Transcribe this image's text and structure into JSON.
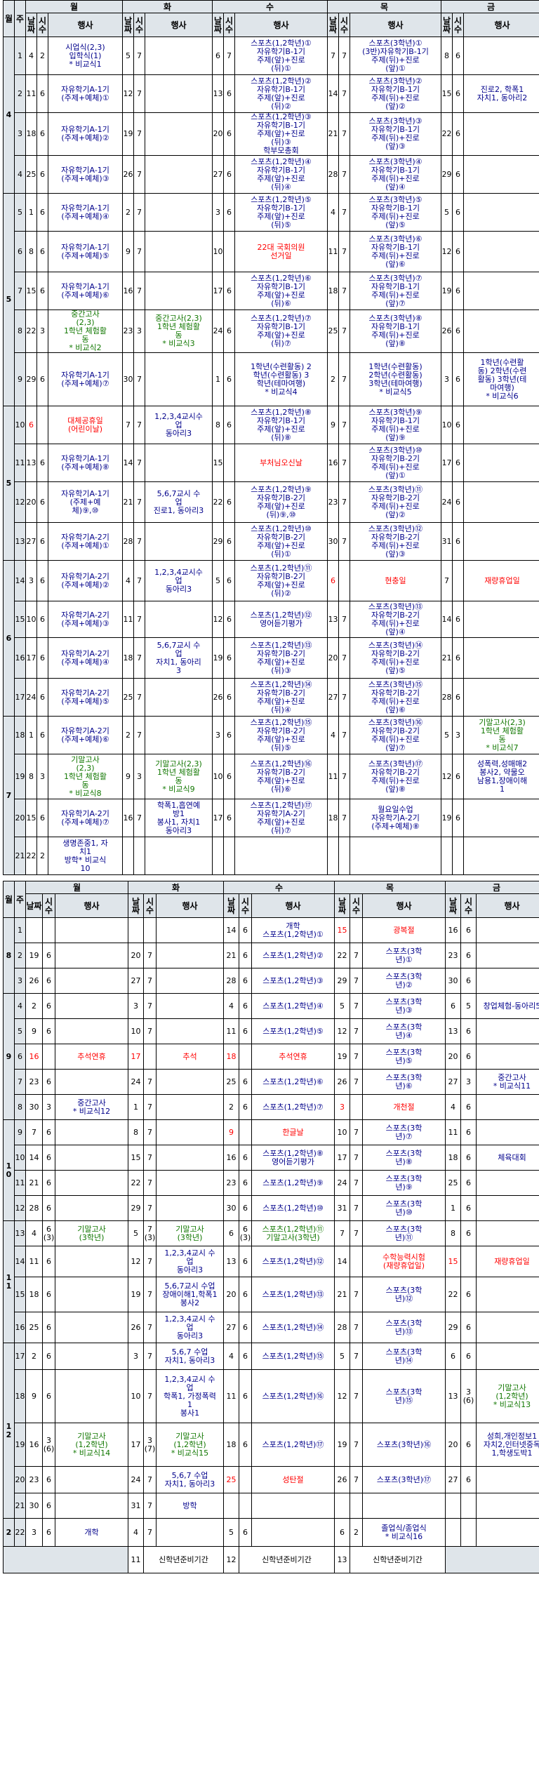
{
  "headers": {
    "month": "월",
    "week": "주",
    "mon": "월",
    "tue": "화",
    "wed": "수",
    "thu": "목",
    "fri": "금",
    "date": "날짜",
    "period": "시수",
    "event": "행사"
  },
  "s1": [
    [
      "4",
      "1",
      "4",
      "2",
      "시업식(2,3)\n입학식(1)\n* 비교식1",
      "5",
      "7",
      "",
      "6",
      "7",
      "스포츠(1,2학년)①\n자유학기B-1기\n주제(앞)+진로\n(뒤)①",
      "7",
      "7",
      "스포츠(3학년)①\n(3반)자유학기B-1기\n주제(뒤)+진로\n(앞)①",
      "8",
      "6",
      ""
    ],
    [
      "",
      "2",
      "11",
      "6",
      "자유학기A-1기\n(주제+예체)①",
      "12",
      "7",
      "",
      "13",
      "6",
      "스포츠(1,2학년)②\n자유학기B-1기\n주제(앞)+진로\n(뒤)②",
      "14",
      "7",
      "스포츠(3학년)②\n자유학기B-1기\n주제(뒤)+진로\n(앞)②",
      "15",
      "6",
      "진로2, 학폭1\n자치1, 동아리2"
    ],
    [
      "",
      "3",
      "18",
      "6",
      "자유학기A-1기\n(주제+예체)②",
      "19",
      "7",
      "",
      "20",
      "6",
      "스포츠(1,2학년)③\n자유학기B-1기\n주제(앞)+진로\n(뒤)③\n학부모총회",
      "21",
      "7",
      "스포츠(3학년)③\n자유학기B-1기\n주제(뒤)+진로\n(앞)③",
      "22",
      "6",
      ""
    ],
    [
      "",
      "4",
      "25",
      "6",
      "자유학기A-1기\n(주제+예체)③",
      "26",
      "7",
      "",
      "27",
      "6",
      "스포츠(1,2학년)④\n자유학기B-1기\n주제(앞)+진로\n(뒤)④",
      "28",
      "7",
      "스포츠(3학년)④\n자유학기B-1기\n주제(뒤)+진로\n(앞)④",
      "29",
      "6",
      ""
    ],
    [
      "5",
      "5",
      "1",
      "6",
      "자유학기A-1기\n(주제+예체)④",
      "2",
      "7",
      "",
      "3",
      "6",
      "스포츠(1,2학년)⑤\n자유학기B-1기\n주제(앞)+진로\n(뒤)⑤",
      "4",
      "7",
      "스포츠(3학년)⑤\n자유학기B-1기\n주제(뒤)+진로\n(앞)⑤",
      "5",
      "6",
      ""
    ],
    [
      "",
      "6",
      "8",
      "6",
      "자유학기A-1기\n(주제+예체)⑤",
      "9",
      "7",
      "",
      "10",
      "",
      "22대 국회의원\n선거일",
      "11",
      "7",
      "스포츠(3학년)⑥\n자유학기B-1기\n주제(뒤)+진로\n(앞)⑥",
      "12",
      "6",
      ""
    ],
    [
      "",
      "7",
      "15",
      "6",
      "자유학기A-1기\n(주제+예체)⑥",
      "16",
      "7",
      "",
      "17",
      "6",
      "스포츠(1,2학년)⑥\n자유학기B-1기\n주제(앞)+진로\n(뒤)⑥",
      "18",
      "7",
      "스포츠(3학년)⑦\n자유학기B-1기\n주제(뒤)+진로\n(앞)⑦",
      "19",
      "6",
      ""
    ],
    [
      "",
      "8",
      "22",
      "3",
      "중간고사\n(2,3)\n1학년 체험활\n동\n* 비교식2",
      "23",
      "3",
      "중간고사(2,3)\n1학년 체험활\n동\n* 비교식3",
      "24",
      "6",
      "스포츠(1,2학년)⑦\n자유학기B-1기\n주제(앞)+진로\n(뒤)⑦",
      "25",
      "7",
      "스포츠(3학년)⑧\n자유학기B-1기\n주제(뒤)+진로\n(앞)⑧",
      "26",
      "6",
      ""
    ],
    [
      "",
      "9",
      "29",
      "6",
      "자유학기A-1기\n(주제+예체)⑦",
      "30",
      "7",
      "",
      "1",
      "6",
      "1학년(수련활동) 2\n학년(수련활동) 3\n학년(테마여행)\n* 비교식4",
      "2",
      "7",
      "1학년(수련활동)\n2학년(수련활동)\n3학년(테마여행)\n* 비교식5",
      "3",
      "6",
      "1학년(수련활\n동) 2학년(수련\n활동) 3학년(테\n마여행)\n* 비교식6"
    ],
    [
      "5",
      "10",
      "6",
      "",
      "대체공휴일\n(어린이날)",
      "7",
      "7",
      "1,2,3,4교시수\n업\n동아리3",
      "8",
      "6",
      "스포츠(1,2학년)⑧\n자유학기B-1기\n주제(앞)+진로\n(뒤)⑧",
      "9",
      "7",
      "스포츠(3학년)⑨\n자유학기B-1기\n주제(뒤)+진로\n(앞)⑨",
      "10",
      "6",
      ""
    ],
    [
      "",
      "11",
      "13",
      "6",
      "자유학기A-1기\n(주제+예체)⑧",
      "14",
      "7",
      "",
      "15",
      "",
      "부처님오신날",
      "16",
      "7",
      "스포츠(3학년)⑩\n자유학기B-2기\n주제(뒤)+진로\n(앞)①",
      "17",
      "6",
      ""
    ],
    [
      "",
      "12",
      "20",
      "6",
      "자유학기A-1기\n(주제+예\n체)⑨,⑩",
      "21",
      "7",
      "5,6,7교시 수\n업\n진로1, 동아리3",
      "22",
      "6",
      "스포츠(1,2학년)⑨\n자유학기B-2기\n주제(앞)+진로\n(뒤)⑨,⑩",
      "23",
      "7",
      "스포츠(3학년)⑪\n자유학기B-2기\n주제(뒤)+진로\n(앞)②",
      "24",
      "6",
      ""
    ],
    [
      "",
      "13",
      "27",
      "6",
      "자유학기A-2기\n(주제+예체)①",
      "28",
      "7",
      "",
      "29",
      "6",
      "스포츠(1,2학년)⑩\n자유학기B-2기\n주제(앞)+진로\n(뒤)①",
      "30",
      "7",
      "스포츠(3학년)⑫\n자유학기B-2기\n주제(뒤)+진로\n(앞)③",
      "31",
      "6",
      ""
    ],
    [
      "6",
      "14",
      "3",
      "6",
      "자유학기A-2기\n(주제+예체)②",
      "4",
      "7",
      "1,2,3,4교시수\n업\n동아리3",
      "5",
      "6",
      "스포츠(1,2학년)⑪\n자유학기B-2기\n주제(앞)+진로\n(뒤)②",
      "6",
      "",
      "현충일",
      "7",
      "",
      "재량휴업일"
    ],
    [
      "",
      "15",
      "10",
      "6",
      "자유학기A-2기\n(주제+예체)③",
      "11",
      "7",
      "",
      "12",
      "6",
      "스포츠(1,2학년)⑫\n영어듣기평가",
      "13",
      "7",
      "스포츠(3학년)⑬\n자유학기B-2기\n주제(뒤)+진로\n(앞)④",
      "14",
      "6",
      ""
    ],
    [
      "",
      "16",
      "17",
      "6",
      "자유학기A-2기\n(주제+예체)④",
      "18",
      "7",
      "5,6,7교시 수\n업\n자치1, 동아리\n3",
      "19",
      "6",
      "스포츠(1,2학년)⑬\n자유학기B-2기\n주제(앞)+진로\n(뒤)③",
      "20",
      "7",
      "스포츠(3학년)⑭\n자유학기B-2기\n주제(뒤)+진로\n(앞)⑤",
      "21",
      "6",
      ""
    ],
    [
      "",
      "17",
      "24",
      "6",
      "자유학기A-2기\n(주제+예체)⑤",
      "25",
      "7",
      "",
      "26",
      "6",
      "스포츠(1,2학년)⑭\n자유학기B-2기\n주제(앞)+진로\n(뒤)④",
      "27",
      "7",
      "스포츠(3학년)⑮\n자유학기B-2기\n주제(뒤)+진로\n(앞)⑥",
      "28",
      "6",
      ""
    ],
    [
      "7",
      "18",
      "1",
      "6",
      "자유학기A-2기\n(주제+예체)⑥",
      "2",
      "7",
      "",
      "3",
      "6",
      "스포츠(1,2학년)⑮\n자유학기B-2기\n주제(앞)+진로\n(뒤)⑤",
      "4",
      "7",
      "스포츠(3학년)⑯\n자유학기B-2기\n주제(뒤)+진로\n(앞)⑦",
      "5",
      "3",
      "기말고사(2,3)\n1학년 체험활\n동\n* 비교식7"
    ],
    [
      "",
      "19",
      "8",
      "3",
      "기말고사\n(2,3)\n1학년 체험활\n동\n* 비교식8",
      "9",
      "3",
      "기말고사(2,3)\n1학년 체험활\n동\n* 비교식9",
      "10",
      "6",
      "스포츠(1,2학년)⑯\n자유학기B-2기\n주제(앞)+진로\n(뒤)⑥",
      "11",
      "7",
      "스포츠(3학년)⑰\n자유학기B-2기\n주제(뒤)+진로\n(앞)⑧",
      "12",
      "6",
      "성폭력,성매매2\n봉사2, 약물오\n남용1,장애이해\n1"
    ],
    [
      "",
      "20",
      "15",
      "6",
      "자유학기A-2기\n(주제+예체)⑦",
      "16",
      "7",
      "학폭1,흡연예\n방1\n봉사1, 자치1\n동아리3",
      "17",
      "6",
      "스포츠(1,2학년)⑰\n자유학기A-2기\n주제(앞)+진로\n(뒤)⑦",
      "18",
      "7",
      "월요일수업\n자유학기A-2기\n(주제+예체)⑧",
      "19",
      "6",
      ""
    ],
    [
      "",
      "21",
      "22",
      "2",
      "생명존중1, 자\n치1\n방학* 비교식\n10",
      "",
      "",
      "",
      "",
      "",
      "",
      "",
      "",
      "",
      "",
      "",
      ""
    ]
  ],
  "s2": [
    [
      "8",
      "1",
      "",
      "",
      "",
      "",
      "",
      "",
      "14",
      "6",
      "개학\n스포츠(1,2학년)①",
      "15",
      "",
      "광복절",
      "16",
      "6",
      ""
    ],
    [
      "",
      "2",
      "19",
      "6",
      "",
      "20",
      "7",
      "",
      "21",
      "6",
      "스포츠(1,2학년)②",
      "22",
      "7",
      "스포츠(3학\n년)①",
      "23",
      "6",
      ""
    ],
    [
      "",
      "3",
      "26",
      "6",
      "",
      "27",
      "7",
      "",
      "28",
      "6",
      "스포츠(1,2학년)③",
      "29",
      "7",
      "스포츠(3학\n년)②",
      "30",
      "6",
      ""
    ],
    [
      "9",
      "4",
      "2",
      "6",
      "",
      "3",
      "7",
      "",
      "4",
      "6",
      "스포츠(1,2학년)④",
      "5",
      "7",
      "스포츠(3학\n년)③",
      "6",
      "5",
      "창업체험-동아리5"
    ],
    [
      "",
      "5",
      "9",
      "6",
      "",
      "10",
      "7",
      "",
      "11",
      "6",
      "스포츠(1,2학년)⑤",
      "12",
      "7",
      "스포츠(3학\n년)④",
      "13",
      "6",
      ""
    ],
    [
      "",
      "6",
      "16",
      "",
      "추석연휴",
      "17",
      "",
      "추석",
      "18",
      "",
      "추석연휴",
      "19",
      "7",
      "스포츠(3학\n년)⑤",
      "20",
      "6",
      ""
    ],
    [
      "",
      "7",
      "23",
      "6",
      "",
      "24",
      "7",
      "",
      "25",
      "6",
      "스포츠(1,2학년)⑥",
      "26",
      "7",
      "스포츠(3학\n년)⑥",
      "27",
      "3",
      "중간고사\n* 비교식11"
    ],
    [
      "",
      "8",
      "30",
      "3",
      "중간고사\n* 비교식12",
      "1",
      "7",
      "",
      "2",
      "6",
      "스포츠(1,2학년)⑦",
      "3",
      "",
      "개천절",
      "4",
      "6",
      ""
    ],
    [
      "10",
      "9",
      "7",
      "6",
      "",
      "8",
      "7",
      "",
      "9",
      "",
      "한글날",
      "10",
      "7",
      "스포츠(3학\n년)⑦",
      "11",
      "6",
      ""
    ],
    [
      "",
      "10",
      "14",
      "6",
      "",
      "15",
      "7",
      "",
      "16",
      "6",
      "스포츠(1,2학년)⑧\n영어듣기평가",
      "17",
      "7",
      "스포츠(3학\n년)⑧",
      "18",
      "6",
      "체육대회"
    ],
    [
      "",
      "11",
      "21",
      "6",
      "",
      "22",
      "7",
      "",
      "23",
      "6",
      "스포츠(1,2학년)⑨",
      "24",
      "7",
      "스포츠(3학\n년)⑨",
      "25",
      "6",
      ""
    ],
    [
      "",
      "12",
      "28",
      "6",
      "",
      "29",
      "7",
      "",
      "30",
      "6",
      "스포츠(1,2학년)⑩",
      "31",
      "7",
      "스포츠(3학\n년)⑩",
      "1",
      "6",
      ""
    ],
    [
      "11",
      "13",
      "4",
      "6(3)",
      "기말고사\n(3학년)",
      "5",
      "7(3)",
      "기말고사\n(3학년)",
      "6",
      "6(3)",
      "스포츠(1,2학년)⑪\n기말고사(3학년)",
      "7",
      "7",
      "스포츠(3학\n년)⑪",
      "8",
      "6",
      ""
    ],
    [
      "",
      "14",
      "11",
      "6",
      "",
      "12",
      "7",
      "1,2,3,4교시 수\n업\n동아리3",
      "13",
      "6",
      "스포츠(1,2학년)⑫",
      "14",
      "",
      "수학능력시험\n(재량휴업일)",
      "15",
      "",
      "재량휴업일"
    ],
    [
      "",
      "15",
      "18",
      "6",
      "",
      "19",
      "7",
      "5,6,7교시 수업\n장애이해1,학폭1\n봉사2",
      "20",
      "6",
      "스포츠(1,2학년)⑬",
      "21",
      "7",
      "스포츠(3학\n년)⑫",
      "22",
      "6",
      ""
    ],
    [
      "",
      "16",
      "25",
      "6",
      "",
      "26",
      "7",
      "1,2,3,4교시 수\n업\n동아리3",
      "27",
      "6",
      "스포츠(1,2학년)⑭",
      "28",
      "7",
      "스포츠(3학\n년)⑬",
      "29",
      "6",
      ""
    ],
    [
      "12",
      "17",
      "2",
      "6",
      "",
      "3",
      "7",
      "5,6,7 수업\n자치1, 동아리3",
      "4",
      "6",
      "스포츠(1,2학년)⑮",
      "5",
      "7",
      "스포츠(3학\n년)⑭",
      "6",
      "6",
      ""
    ],
    [
      "",
      "18",
      "9",
      "6",
      "",
      "10",
      "7",
      "1,2,3,4교시 수\n업\n학폭1, 가정폭력\n1\n봉사1",
      "11",
      "6",
      "스포츠(1,2학년)⑯",
      "12",
      "7",
      "스포츠(3학\n년)⑮",
      "13",
      "3(6)",
      "기말고사\n(1,2학년)\n* 비교식13"
    ],
    [
      "",
      "19",
      "16",
      "3(6)",
      "기말고사\n(1,2학년)\n* 비교식14",
      "17",
      "3(7)",
      "기말고사\n(1,2학년)\n* 비교식15",
      "18",
      "6",
      "스포츠(1,2학년)⑰",
      "19",
      "7",
      "스포츠(3학년)⑯",
      "20",
      "6",
      "성희,개인정보1\n자치2,인터넷중독\n1,학생도박1"
    ],
    [
      "",
      "20",
      "23",
      "6",
      "",
      "24",
      "7",
      "5,6,7 수업\n자치1, 동아리3",
      "25",
      "",
      "성탄절",
      "26",
      "7",
      "스포츠(3학년)⑰",
      "27",
      "6",
      ""
    ],
    [
      "",
      "21",
      "30",
      "6",
      "",
      "31",
      "7",
      "방학",
      "",
      "",
      "",
      "",
      "",
      "",
      "",
      "",
      ""
    ],
    [
      "2",
      "22",
      "3",
      "6",
      "개학",
      "4",
      "7",
      "",
      "5",
      "6",
      "",
      "6",
      "2",
      "졸업식/종업식\n* 비교식16",
      "",
      "",
      ""
    ]
  ],
  "s2end": [
    "11",
    "신학년준비기간",
    "12",
    "신학년준비기간",
    "13",
    "신학년준비기간"
  ]
}
